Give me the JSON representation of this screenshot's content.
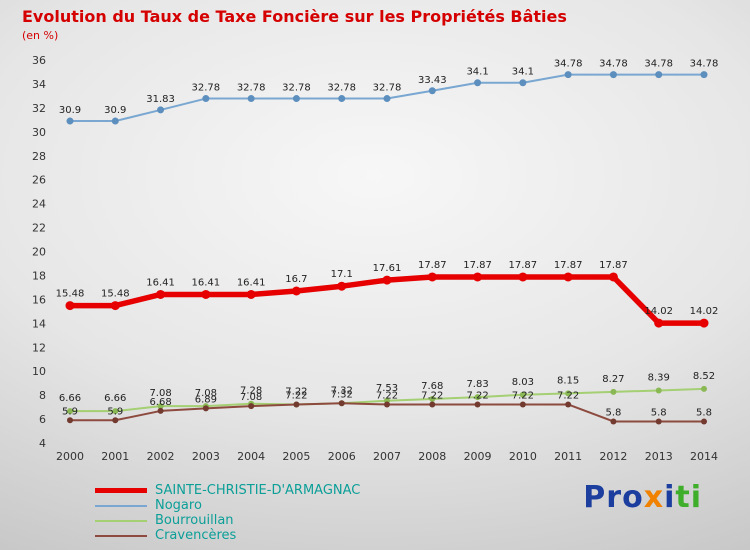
{
  "title": "Evolution du Taux de Taxe Foncière sur les Propriétés Bâties",
  "subtitle": "(en %)",
  "legend": {
    "label_color": "#0b9f98",
    "items": [
      {
        "label": "SAINTE-CHRISTIE-D'ARMAGNAC",
        "color": "#e60000",
        "thickness": 5
      },
      {
        "label": "Nogaro",
        "color": "#79a7d1",
        "thickness": 2
      },
      {
        "label": "Bourrouillan",
        "color": "#a4cf72",
        "thickness": 2
      },
      {
        "label": "Cravencères",
        "color": "#8d4a3e",
        "thickness": 2
      }
    ]
  },
  "logo": {
    "text": "Proxiti",
    "letters": [
      {
        "ch": "P",
        "color": "#1c3e9e"
      },
      {
        "ch": "r",
        "color": "#1c3e9e"
      },
      {
        "ch": "o",
        "color": "#1c3e9e"
      },
      {
        "ch": "x",
        "color": "#f08200"
      },
      {
        "ch": "i",
        "color": "#1c3e9e"
      },
      {
        "ch": "t",
        "color": "#3fae2a"
      },
      {
        "ch": "i",
        "color": "#3fae2a"
      }
    ]
  },
  "chart_data": {
    "type": "line",
    "title": "Evolution du Taux de Taxe Foncière sur les Propriétés Bâties",
    "xlabel": "",
    "ylabel": "en %",
    "ylim": [
      4,
      36
    ],
    "ytick_step": 2,
    "grid": false,
    "legend_position": "bottom-left",
    "x": [
      2000,
      2001,
      2002,
      2003,
      2004,
      2005,
      2006,
      2007,
      2008,
      2009,
      2010,
      2011,
      2012,
      2013,
      2014
    ],
    "series": [
      {
        "name": "Nogaro",
        "color": "#79a7d1",
        "marker_color": "#5d8fbe",
        "line_width": 2,
        "marker_radius": 3.5,
        "label_offset": 8,
        "values": [
          30.9,
          30.9,
          31.83,
          32.78,
          32.78,
          32.78,
          32.78,
          32.78,
          33.43,
          34.1,
          34.1,
          34.78,
          34.78,
          34.78,
          34.78
        ],
        "labels": [
          "30.9",
          "30.9",
          "31.83",
          "32.78",
          "32.78",
          "32.78",
          "32.78",
          "32.78",
          "33.43",
          "34.1",
          "34.1",
          "34.78",
          "34.78",
          "34.78",
          "34.78"
        ]
      },
      {
        "name": "Bourrouillan",
        "color": "#a4cf72",
        "marker_color": "#8ab854",
        "line_width": 2,
        "marker_radius": 3,
        "label_offset": 10,
        "values": [
          6.66,
          6.66,
          7.08,
          7.08,
          7.28,
          7.22,
          7.32,
          7.53,
          7.68,
          7.83,
          8.03,
          8.15,
          8.27,
          8.39,
          8.52
        ],
        "labels": [
          "6.66",
          "6.66",
          "7.08",
          "7.08",
          "7.28",
          "7.22",
          "7.32",
          "7.53",
          "7.68",
          "7.83",
          "8.03",
          "8.15",
          "8.27",
          "8.39",
          "8.52"
        ]
      },
      {
        "name": "Cravencères",
        "color": "#8d4a3e",
        "marker_color": "#733a30",
        "line_width": 2,
        "marker_radius": 3,
        "label_offset": 6,
        "values": [
          5.9,
          5.9,
          6.68,
          6.89,
          7.08,
          7.22,
          7.32,
          7.22,
          7.22,
          7.22,
          7.22,
          7.22,
          5.8,
          5.8,
          5.8
        ],
        "labels": [
          "5.9",
          "5.9",
          "6.68",
          "6.89",
          "7.08",
          "7.22",
          "7.32",
          "7.22",
          "7.22",
          "7.22",
          "7.22",
          "7.22",
          "5.8",
          "5.8",
          "5.8"
        ]
      },
      {
        "name": "SAINTE-CHRISTIE-D'ARMAGNAC",
        "color": "#e60000",
        "marker_color": "#e60000",
        "line_width": 5.5,
        "marker_radius": 4.5,
        "label_offset": 9,
        "values": [
          15.48,
          15.48,
          16.41,
          16.41,
          16.41,
          16.7,
          17.1,
          17.61,
          17.87,
          17.87,
          17.87,
          17.87,
          17.87,
          14.02,
          14.02
        ],
        "labels": [
          "15.48",
          "15.48",
          "16.41",
          "16.41",
          "16.41",
          "16.7",
          "17.1",
          "17.61",
          "17.87",
          "17.87",
          "17.87",
          "17.87",
          "17.87",
          "14.02",
          "14.02"
        ]
      }
    ]
  }
}
